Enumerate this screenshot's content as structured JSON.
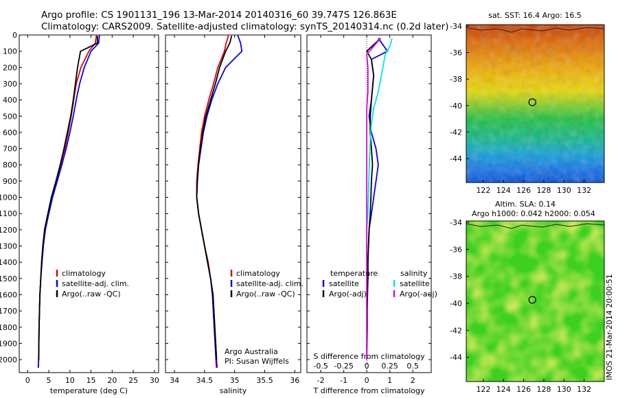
{
  "header": {
    "line1": "Argo profile: CS 1901131_196 13-Mar-2014 20140316_60 39.747S 126.863E",
    "line2": "Climatology: CARS2009. Satellite-adjusted climatology: synTS_20140314.nc (0.2d later)"
  },
  "colors": {
    "climatology": "#e00000",
    "satellite": "#0000ee",
    "argo": "#000000",
    "salinity_satellite": "#00e0ee",
    "salinity_argo": "#e000e0"
  },
  "chart_data": [
    {
      "type": "line",
      "xlabel": "temperature (deg C)",
      "ylabel": "",
      "xlim": [
        -2,
        31
      ],
      "ylim": [
        2080,
        0
      ],
      "xticks": [
        "0",
        "5",
        "10",
        "15",
        "20",
        "25",
        "30"
      ],
      "yticks": [
        "0",
        "100",
        "200",
        "300",
        "400",
        "500",
        "600",
        "700",
        "800",
        "900",
        "1000",
        "1100",
        "1200",
        "1300",
        "1400",
        "1500",
        "1600",
        "1700",
        "1800",
        "1900",
        "2000"
      ],
      "legend": [
        "climatology",
        "satellite-adj. clim.",
        "Argo(..raw -QC)"
      ],
      "series": [
        {
          "name": "climatology",
          "color_key": "climatology",
          "x": [
            16.3,
            16.0,
            14.5,
            12.6,
            11.5,
            10.9,
            10.3,
            9.6,
            8.8,
            7.8,
            6.8,
            5.7,
            4.8,
            4.0,
            3.6,
            3.3,
            3.1,
            2.9,
            2.7,
            2.6,
            2.5
          ],
          "y": [
            0,
            50,
            100,
            200,
            300,
            400,
            500,
            600,
            700,
            800,
            900,
            1000,
            1100,
            1200,
            1300,
            1400,
            1500,
            1600,
            1800,
            2000,
            2050
          ]
        },
        {
          "name": "satellite-adj. clim.",
          "color_key": "satellite",
          "x": [
            17.0,
            16.8,
            15.0,
            13.4,
            12.3,
            11.5,
            10.8,
            10.0,
            9.1,
            8.1,
            7.0,
            5.9,
            5.0,
            4.2,
            3.7,
            3.4,
            3.1,
            2.9,
            2.7,
            2.6,
            2.5
          ],
          "y": [
            0,
            50,
            100,
            200,
            300,
            400,
            500,
            600,
            700,
            800,
            900,
            1000,
            1100,
            1200,
            1300,
            1400,
            1500,
            1600,
            1800,
            2000,
            2050
          ]
        },
        {
          "name": "Argo(..raw -QC)",
          "color_key": "argo",
          "x": [
            16.5,
            16.5,
            12.5,
            11.8,
            11.3,
            10.8,
            10.2,
            9.4,
            8.6,
            7.7,
            6.7,
            5.6,
            4.8,
            4.0,
            3.6,
            3.3,
            3.1,
            2.9,
            2.7,
            2.6
          ],
          "y": [
            5,
            50,
            100,
            200,
            300,
            400,
            500,
            600,
            700,
            800,
            900,
            1000,
            1100,
            1200,
            1300,
            1400,
            1500,
            1600,
            1800,
            2000
          ]
        }
      ]
    },
    {
      "type": "line",
      "xlabel": "salinity",
      "ylabel": "",
      "xlim": [
        33.85,
        36.1
      ],
      "ylim": [
        2080,
        0
      ],
      "xticks": [
        "34",
        "34.5",
        "35",
        "35.5",
        "36"
      ],
      "legend": [
        "climatology",
        "satellite-adj. clim.",
        "Argo(..raw -QC)"
      ],
      "annotation_lines": [
        "Argo Australia",
        "PI: Susan Wijffels"
      ],
      "series": [
        {
          "name": "climatology",
          "color_key": "climatology",
          "x": [
            34.9,
            34.86,
            34.83,
            34.72,
            34.65,
            34.57,
            34.5,
            34.45,
            34.42,
            34.39,
            34.37,
            34.37,
            34.4,
            34.45,
            34.5,
            34.56,
            34.6,
            34.64,
            34.67,
            34.7,
            34.71
          ],
          "y": [
            0,
            50,
            100,
            200,
            300,
            400,
            500,
            600,
            700,
            800,
            900,
            1000,
            1100,
            1200,
            1300,
            1400,
            1500,
            1600,
            1800,
            2000,
            2050
          ]
        },
        {
          "name": "satellite-adj. clim.",
          "color_key": "satellite",
          "x": [
            35.05,
            35.1,
            35.12,
            34.85,
            34.72,
            34.62,
            34.54,
            34.48,
            34.44,
            34.4,
            34.38,
            34.37,
            34.4,
            34.45,
            34.5,
            34.55,
            34.6,
            34.63,
            34.66,
            34.69,
            34.7
          ],
          "y": [
            0,
            50,
            100,
            200,
            300,
            400,
            500,
            600,
            700,
            800,
            900,
            1000,
            1100,
            1200,
            1300,
            1400,
            1500,
            1600,
            1800,
            2000,
            2050
          ]
        },
        {
          "name": "Argo(..raw -QC)",
          "color_key": "argo",
          "x": [
            34.95,
            34.92,
            34.85,
            34.75,
            34.68,
            34.6,
            34.52,
            34.47,
            34.43,
            34.4,
            34.38,
            34.37,
            34.4,
            34.45,
            34.5,
            34.55,
            34.6,
            34.64,
            34.67,
            34.7
          ],
          "y": [
            5,
            50,
            100,
            200,
            300,
            400,
            500,
            600,
            700,
            800,
            900,
            1000,
            1100,
            1200,
            1300,
            1400,
            1500,
            1600,
            1800,
            2000
          ]
        }
      ]
    },
    {
      "type": "line",
      "xlabel": "T difference from climatology",
      "title": "S difference from climatology",
      "xlim": [
        -2.6,
        2.8
      ],
      "ylim": [
        2080,
        0
      ],
      "xticks": [
        "-2",
        "-1",
        "0",
        "1",
        "2"
      ],
      "top_xticks": [
        "-0.5",
        "-0.25",
        "0",
        "0.25",
        "0.5"
      ],
      "legend": [
        "temperature",
        "satellite",
        "Argo(-adj)",
        "salinity",
        "satellite",
        "Argo(-adj)"
      ],
      "series": [
        {
          "name": "satellite",
          "group": "temperature",
          "color_key": "satellite",
          "x": [
            0.5,
            0.7,
            0.9,
            0.2,
            0.3,
            0.2,
            0.1,
            0.2,
            0.4,
            0.5,
            0.4,
            0.3,
            0.2,
            0.1,
            0.05,
            0.05,
            0.0,
            0.0,
            0.0,
            0.0
          ],
          "y": [
            20,
            60,
            100,
            150,
            250,
            400,
            500,
            600,
            700,
            800,
            900,
            1000,
            1100,
            1200,
            1400,
            1500,
            1600,
            1700,
            1800,
            2000
          ]
        },
        {
          "name": "Argo(-adj)",
          "group": "temperature",
          "color_key": "argo",
          "x": [
            0.6,
            0.3,
            0.0,
            0.2,
            0.3,
            0.2,
            0.15,
            0.15,
            0.2,
            0.25,
            0.2,
            0.18,
            0.15,
            0.1,
            0.05,
            0.05,
            0.03,
            0.02,
            0.02,
            0.0
          ],
          "y": [
            20,
            60,
            100,
            150,
            250,
            400,
            500,
            600,
            700,
            800,
            900,
            1000,
            1100,
            1200,
            1400,
            1500,
            1600,
            1700,
            1800,
            2000
          ]
        },
        {
          "name": "satellite",
          "group": "salinity",
          "color_key": "salinity_satellite",
          "x": [
            1.1,
            1.0,
            0.8,
            0.7,
            0.5,
            0.3,
            0.2,
            0.15,
            0.12,
            0.1,
            0.08,
            0.05,
            0.0,
            0.0,
            0.0,
            0.0,
            0.0,
            0.0,
            0.0
          ],
          "y": [
            20,
            70,
            120,
            200,
            350,
            450,
            550,
            650,
            750,
            850,
            950,
            1100,
            1200,
            1400,
            1500,
            1600,
            1700,
            1800,
            2000
          ]
        },
        {
          "name": "Argo(-adj)",
          "group": "salinity",
          "color_key": "salinity_argo",
          "x": [
            0.6,
            0.3,
            0.0,
            0.05,
            0.05,
            0.0,
            0.0,
            0.0,
            0.0,
            0.0,
            0.0,
            0.0,
            0.0,
            0.0,
            0.0,
            0.0,
            0.0,
            0.0,
            0.0
          ],
          "y": [
            20,
            70,
            120,
            200,
            350,
            450,
            550,
            650,
            750,
            850,
            950,
            1100,
            1200,
            1400,
            1500,
            1600,
            1700,
            1800,
            2000
          ]
        }
      ]
    },
    {
      "type": "heatmap",
      "title": "sat. SST: 16.4  Argo: 16.5",
      "xticks": [
        "122",
        "124",
        "126",
        "128",
        "130",
        "132"
      ],
      "yticks": [
        "-34",
        "-36",
        "-38",
        "-40",
        "-42",
        "-44"
      ],
      "xlim": [
        120.3,
        134
      ],
      "ylim": [
        -45.8,
        -33.9
      ],
      "marker": {
        "lon": 126.863,
        "lat": -39.747
      }
    },
    {
      "type": "heatmap",
      "title_lines": [
        "Altim. SLA: 0.14",
        "Argo h1000: 0.042  h2000: 0.054"
      ],
      "xticks": [
        "122",
        "124",
        "126",
        "128",
        "130",
        "132"
      ],
      "yticks": [
        "-34",
        "-36",
        "-38",
        "-40",
        "-42",
        "-44"
      ],
      "xlim": [
        120.3,
        134
      ],
      "ylim": [
        -45.8,
        -33.9
      ],
      "marker": {
        "lon": 126.863,
        "lat": -39.747
      }
    }
  ],
  "side_label": "IMOS 21-Mar-2014 20:00:51"
}
